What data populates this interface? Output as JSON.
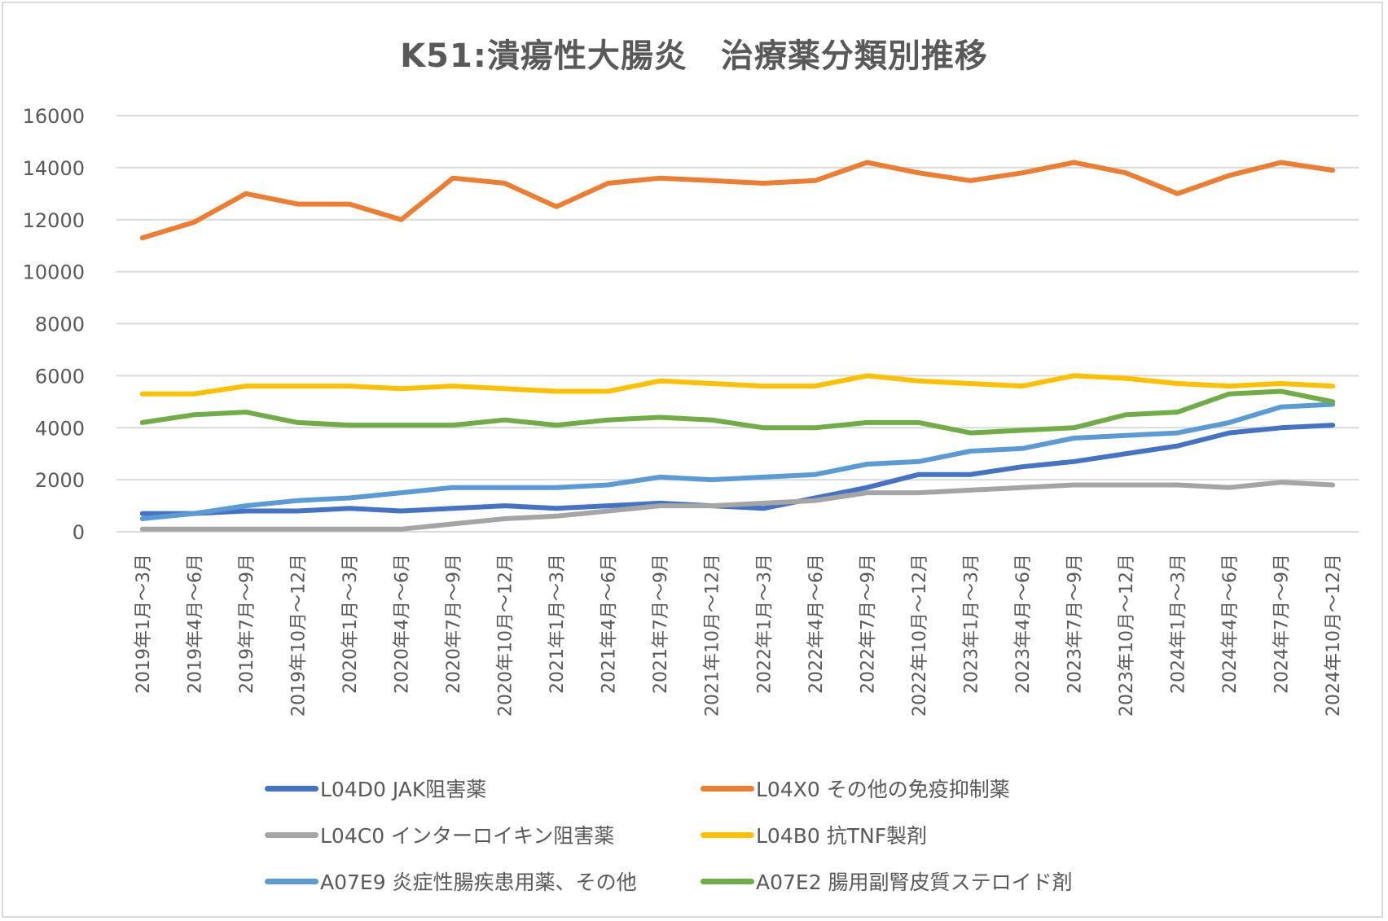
{
  "chart_data": {
    "type": "line",
    "title": "K51:潰瘍性大腸炎　治療薬分類別推移",
    "xlabel": "",
    "ylabel": "",
    "ylim": [
      0,
      16000
    ],
    "yticks": [
      "0",
      "2000",
      "4000",
      "6000",
      "8000",
      "10000",
      "12000",
      "14000",
      "16000"
    ],
    "grid": true,
    "legend_position": "bottom",
    "categories": [
      "2019年1月～3月",
      "2019年4月～6月",
      "2019年7月～9月",
      "2019年10月～12月",
      "2020年1月～3月",
      "2020年4月～6月",
      "2020年7月～9月",
      "2020年10月～12月",
      "2021年1月～3月",
      "2021年4月～6月",
      "2021年7月～9月",
      "2021年10月～12月",
      "2022年1月～3月",
      "2022年4月～6月",
      "2022年7月～9月",
      "2022年10月～12月",
      "2023年1月～3月",
      "2023年4月～6月",
      "2023年7月～9月",
      "2023年10月～12月",
      "2024年1月～3月",
      "2024年4月～6月",
      "2024年7月～9月",
      "2024年10月～12月"
    ],
    "series": [
      {
        "name": "L04D0  JAK阻害薬",
        "color": "#4472c4",
        "values": [
          700,
          700,
          800,
          800,
          900,
          800,
          900,
          1000,
          900,
          1000,
          1100,
          1000,
          900,
          1300,
          1700,
          2200,
          2200,
          2500,
          2700,
          3000,
          3300,
          3800,
          4000,
          4100
        ]
      },
      {
        "name": "L04X0  その他の免疫抑制薬",
        "color": "#ed7d31",
        "values": [
          11300,
          11900,
          13000,
          12600,
          12600,
          12000,
          13600,
          13400,
          12500,
          13400,
          13600,
          13500,
          13400,
          13500,
          14200,
          13800,
          13500,
          13800,
          14200,
          13800,
          13000,
          13700,
          14200,
          13900
        ]
      },
      {
        "name": "L04C0  インターロイキン阻害薬",
        "color": "#a5a5a5",
        "values": [
          100,
          100,
          100,
          100,
          100,
          100,
          300,
          500,
          600,
          800,
          1000,
          1000,
          1100,
          1200,
          1500,
          1500,
          1600,
          1700,
          1800,
          1800,
          1800,
          1700,
          1900,
          1800
        ]
      },
      {
        "name": "L04B0  抗TNF製剤",
        "color": "#ffc000",
        "values": [
          5300,
          5300,
          5600,
          5600,
          5600,
          5500,
          5600,
          5500,
          5400,
          5400,
          5800,
          5700,
          5600,
          5600,
          6000,
          5800,
          5700,
          5600,
          6000,
          5900,
          5700,
          5600,
          5700,
          5600
        ]
      },
      {
        "name": "A07E9  炎症性腸疾患用薬、その他",
        "color": "#5b9bd5",
        "values": [
          500,
          700,
          1000,
          1200,
          1300,
          1500,
          1700,
          1700,
          1700,
          1800,
          2100,
          2000,
          2100,
          2200,
          2600,
          2700,
          3100,
          3200,
          3600,
          3700,
          3800,
          4200,
          4800,
          4900
        ]
      },
      {
        "name": "A07E2  腸用副腎皮質ステロイド剤",
        "color": "#70ad47",
        "values": [
          4200,
          4500,
          4600,
          4200,
          4100,
          4100,
          4100,
          4300,
          4100,
          4300,
          4400,
          4300,
          4000,
          4000,
          4200,
          4200,
          3800,
          3900,
          4000,
          4500,
          4600,
          5300,
          5400,
          5000
        ]
      }
    ]
  }
}
